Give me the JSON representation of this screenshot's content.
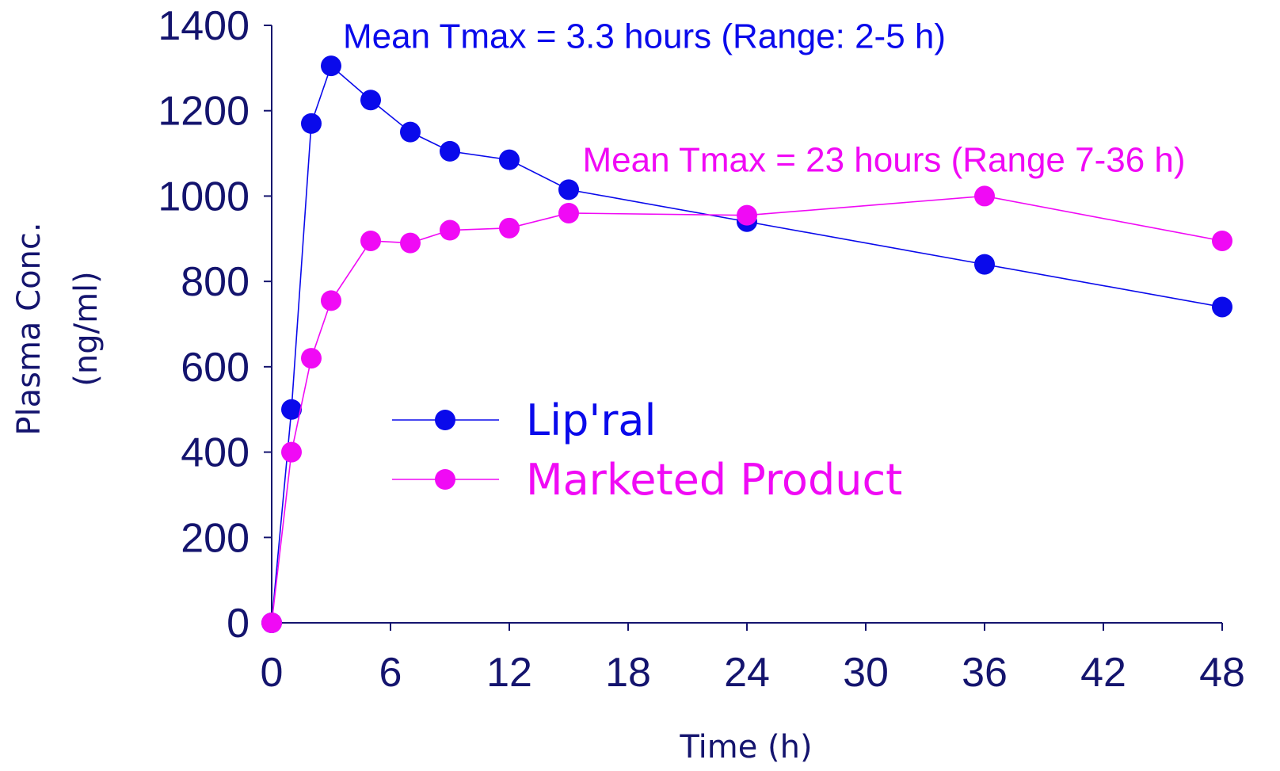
{
  "chart_data": {
    "type": "line",
    "title": "",
    "xlabel": "Time (h)",
    "ylabel_lines": [
      "Plasma Conc.",
      "(ng/ml)"
    ],
    "xlim": [
      0,
      48
    ],
    "ylim": [
      0,
      1400
    ],
    "x_ticks": [
      0,
      6,
      12,
      18,
      24,
      30,
      36,
      42,
      48
    ],
    "y_ticks": [
      0,
      200,
      400,
      600,
      800,
      1000,
      1200,
      1400
    ],
    "grid": false,
    "legend_position": "center",
    "series": [
      {
        "name": "Lip'ral",
        "color": "#0a0aeb",
        "marker": "circle",
        "x": [
          0,
          1,
          2,
          3,
          5,
          7,
          9,
          12,
          15,
          24,
          36,
          48
        ],
        "y": [
          0,
          500,
          1170,
          1305,
          1225,
          1150,
          1105,
          1085,
          1015,
          940,
          840,
          740
        ]
      },
      {
        "name": "Marketed Product",
        "color": "#f00af5",
        "marker": "circle",
        "x": [
          0,
          1,
          2,
          3,
          5,
          7,
          9,
          12,
          15,
          24,
          36,
          48
        ],
        "y": [
          0,
          400,
          620,
          755,
          895,
          890,
          920,
          925,
          960,
          955,
          1000,
          895
        ]
      }
    ],
    "annotations": [
      {
        "text": "Mean Tmax = 3.3 hours (Range: 2-5 h)",
        "color": "#0a0aeb",
        "x": 3.6,
        "y": 1375
      },
      {
        "text": "Mean Tmax = 23 hours (Range 7-36 h)",
        "color": "#f00af5",
        "x": 15.7,
        "y": 1085
      }
    ],
    "axis_color": "#14146e"
  }
}
